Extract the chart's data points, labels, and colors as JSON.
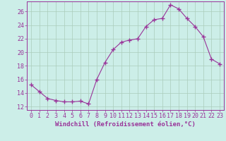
{
  "x": [
    0,
    1,
    2,
    3,
    4,
    5,
    6,
    7,
    8,
    9,
    10,
    11,
    12,
    13,
    14,
    15,
    16,
    17,
    18,
    19,
    20,
    21,
    22,
    23
  ],
  "y": [
    15.2,
    14.2,
    13.2,
    12.9,
    12.7,
    12.7,
    12.8,
    12.4,
    16.0,
    18.5,
    20.4,
    21.5,
    21.8,
    22.0,
    23.8,
    24.8,
    25.0,
    27.0,
    26.4,
    25.0,
    23.8,
    22.3,
    19.0,
    18.3
  ],
  "line_color": "#993399",
  "marker": "+",
  "markersize": 4,
  "bg_color": "#cceee8",
  "grid_color": "#aaccbb",
  "axis_color": "#993399",
  "tick_color": "#993399",
  "xlabel": "Windchill (Refroidissement éolien,°C)",
  "ylabel": "",
  "xlim": [
    -0.5,
    23.5
  ],
  "ylim": [
    11.5,
    27.5
  ],
  "yticks": [
    12,
    14,
    16,
    18,
    20,
    22,
    24,
    26
  ],
  "xticks": [
    0,
    1,
    2,
    3,
    4,
    5,
    6,
    7,
    8,
    9,
    10,
    11,
    12,
    13,
    14,
    15,
    16,
    17,
    18,
    19,
    20,
    21,
    22,
    23
  ],
  "label_fontsize": 6.5,
  "tick_fontsize": 6
}
